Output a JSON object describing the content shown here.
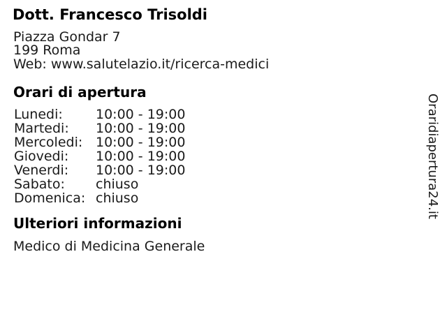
{
  "colors": {
    "background": "#ffffff",
    "heading_text": "#000000",
    "body_text": "#1a1a1a"
  },
  "doctor": {
    "name": "Dott. Francesco Trisoldi",
    "address_line1": "Piazza Gondar 7",
    "address_line2": "199 Roma",
    "web": "Web: www.salutelazio.it/ricerca-medici"
  },
  "opening_hours": {
    "heading": "Orari di apertura",
    "rows": [
      {
        "day": "Lunedi:",
        "value": "10:00 - 19:00"
      },
      {
        "day": "Martedi:",
        "value": "10:00 - 19:00"
      },
      {
        "day": "Mercoledi:",
        "value": "10:00 - 19:00"
      },
      {
        "day": "Giovedi:",
        "value": "10:00 - 19:00"
      },
      {
        "day": "Venerdi:",
        "value": "10:00 - 19:00"
      },
      {
        "day": "Sabato:",
        "value": "chiuso"
      },
      {
        "day": "Domenica:",
        "value": "chiuso"
      }
    ]
  },
  "additional_info": {
    "heading": "Ulteriori informazioni",
    "text": "Medico di Medicina Generale"
  },
  "watermark": {
    "text": "Oraridiapertura24.it"
  }
}
